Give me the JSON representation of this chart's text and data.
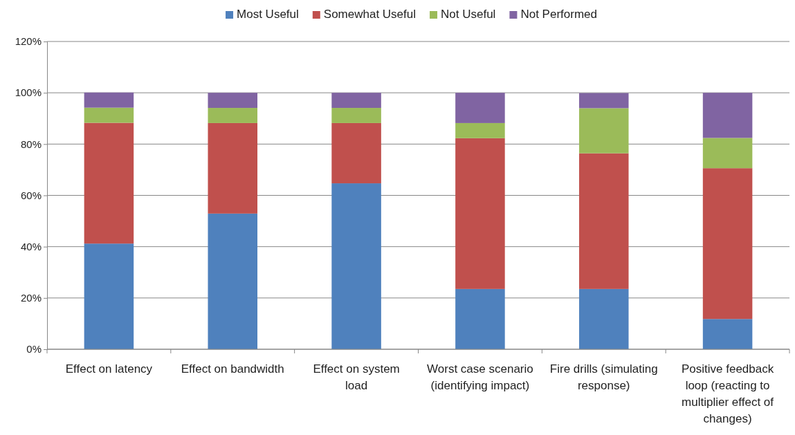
{
  "chart_data": {
    "type": "bar",
    "stacked": true,
    "legend": "top",
    "grid": "y",
    "categories": [
      "Effect on latency",
      "Effect on bandwidth",
      "Effect on system load",
      "Worst case scenario (identifying impact)",
      "Fire drills (simulating response)",
      "Positive feedback loop (reacting to multiplier effect of changes)"
    ],
    "series": [
      {
        "name": "Most Useful",
        "color": "#4f81bd",
        "values": [
          41.2,
          52.9,
          64.7,
          23.5,
          23.5,
          11.8
        ]
      },
      {
        "name": "Somewhat Useful",
        "color": "#c0504d",
        "values": [
          47.1,
          35.3,
          23.5,
          58.8,
          52.9,
          58.8
        ]
      },
      {
        "name": "Not Useful",
        "color": "#9bbb59",
        "values": [
          5.9,
          5.9,
          5.9,
          5.9,
          17.6,
          11.8
        ]
      },
      {
        "name": "Not Performed",
        "color": "#8064a2",
        "values": [
          5.9,
          5.9,
          5.9,
          11.8,
          5.9,
          17.6
        ]
      }
    ],
    "ylim": [
      0,
      120
    ],
    "yticks": [
      {
        "value": 0,
        "label": "0%"
      },
      {
        "value": 20,
        "label": "20%"
      },
      {
        "value": 40,
        "label": "40%"
      },
      {
        "value": 60,
        "label": "60%"
      },
      {
        "value": 80,
        "label": "80%"
      },
      {
        "value": 100,
        "label": "100%"
      },
      {
        "value": 120,
        "label": "120%"
      }
    ]
  }
}
